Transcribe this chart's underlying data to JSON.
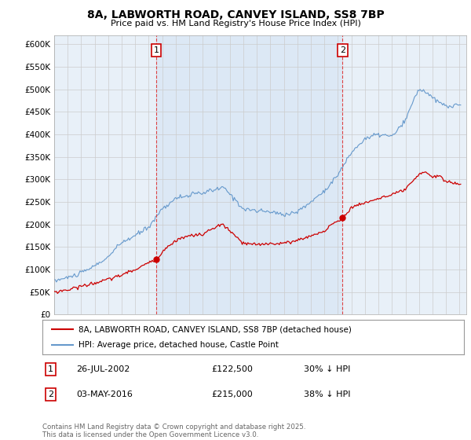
{
  "title": "8A, LABWORTH ROAD, CANVEY ISLAND, SS8 7BP",
  "subtitle": "Price paid vs. HM Land Registry's House Price Index (HPI)",
  "ylim": [
    0,
    620000
  ],
  "yticks": [
    0,
    50000,
    100000,
    150000,
    200000,
    250000,
    300000,
    350000,
    400000,
    450000,
    500000,
    550000,
    600000
  ],
  "xlim_start": 1995.0,
  "xlim_end": 2025.5,
  "background_color": "#ffffff",
  "plot_bg_color": "#e8f0f8",
  "grid_color": "#cccccc",
  "hpi_color": "#6699cc",
  "price_color": "#cc0000",
  "marker1_x": 2002.56,
  "marker2_x": 2016.34,
  "marker1_label": "1",
  "marker2_label": "2",
  "marker1_date": "26-JUL-2002",
  "marker1_price": "£122,500",
  "marker1_hpi": "30% ↓ HPI",
  "marker2_date": "03-MAY-2016",
  "marker2_price": "£215,000",
  "marker2_hpi": "38% ↓ HPI",
  "legend_line1": "8A, LABWORTH ROAD, CANVEY ISLAND, SS8 7BP (detached house)",
  "legend_line2": "HPI: Average price, detached house, Castle Point",
  "footnote": "Contains HM Land Registry data © Crown copyright and database right 2025.\nThis data is licensed under the Open Government Licence v3.0."
}
